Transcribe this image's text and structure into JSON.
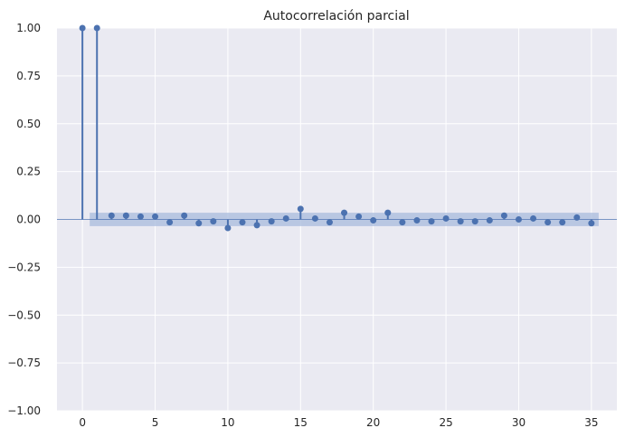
{
  "chart_data": {
    "type": "stem",
    "title": "Autocorrelación parcial",
    "xlabel": "",
    "ylabel": "",
    "x": [
      0,
      1,
      2,
      3,
      4,
      5,
      6,
      7,
      8,
      9,
      10,
      11,
      12,
      13,
      14,
      15,
      16,
      17,
      18,
      19,
      20,
      21,
      22,
      23,
      24,
      25,
      26,
      27,
      28,
      29,
      30,
      31,
      32,
      33,
      34,
      35
    ],
    "values": [
      1.0,
      1.0,
      0.02,
      0.02,
      0.015,
      0.015,
      -0.015,
      0.02,
      -0.02,
      -0.01,
      -0.045,
      -0.015,
      -0.03,
      -0.01,
      0.005,
      0.055,
      0.005,
      -0.015,
      0.035,
      0.015,
      -0.005,
      0.035,
      -0.015,
      -0.005,
      -0.01,
      0.005,
      -0.01,
      -0.01,
      -0.005,
      0.02,
      0.0,
      0.005,
      -0.015,
      -0.015,
      0.01,
      -0.02
    ],
    "confidence_band": {
      "lower": -0.035,
      "upper": 0.035,
      "x_start": 0.5,
      "x_end": 35.5
    },
    "xlim": [
      -1.75,
      36.75
    ],
    "ylim": [
      -1.0,
      1.0
    ],
    "x_ticks": [
      "0",
      "5",
      "10",
      "15",
      "20",
      "25",
      "30",
      "35"
    ],
    "y_ticks": [
      "1.00",
      "0.75",
      "0.50",
      "0.25",
      "0.00",
      "−0.25",
      "−0.50",
      "−0.75",
      "−1.00"
    ],
    "grid": true,
    "colors": {
      "plot_background": "#eaeaf2",
      "grid": "#ffffff",
      "stem": "#4c72b0",
      "band": "#a8bbdc"
    }
  }
}
